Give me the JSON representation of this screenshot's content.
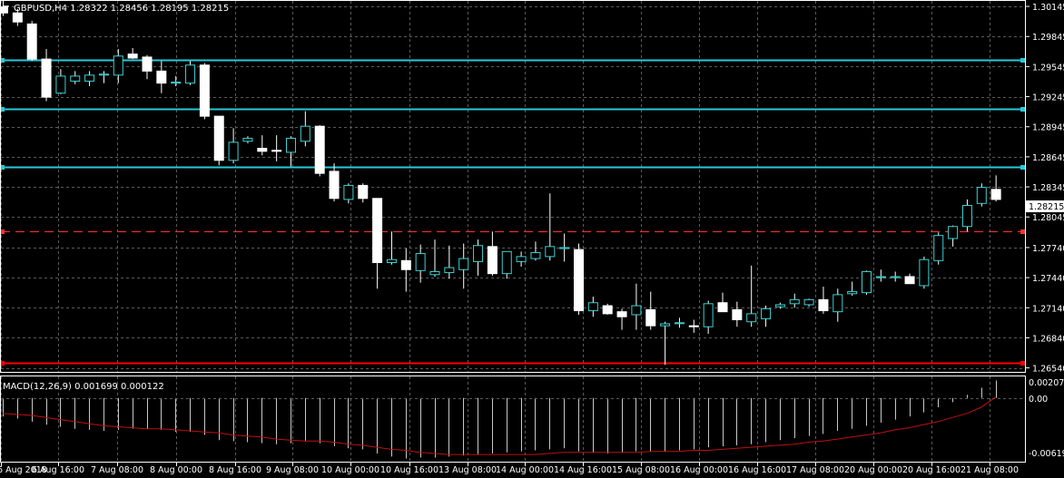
{
  "header": {
    "collapse_glyph": "▼",
    "symbol_line": "GBPUSD,H4  1.28322 1.28456 1.28195 1.28215"
  },
  "price_axis": {
    "ticks": [
      "1.30145",
      "1.29845",
      "1.29545",
      "1.29245",
      "1.28945",
      "1.28645",
      "1.28345",
      "1.28045",
      "1.27740",
      "1.27440",
      "1.27140",
      "1.26840",
      "1.26540"
    ],
    "current_price": "1.28215"
  },
  "macd": {
    "label": "MACD(12,26,9) 0.001699 0.000122",
    "ticks": [
      "0.002074",
      "0.00",
      "-0.006191"
    ]
  },
  "time_axis": {
    "labels": [
      "6 Aug 2018",
      "6 Aug 16:00",
      "7 Aug 08:00",
      "8 Aug 00:00",
      "8 Aug 16:00",
      "9 Aug 08:00",
      "10 Aug 00:00",
      "10 Aug 16:00",
      "13 Aug 08:00",
      "14 Aug 00:00",
      "14 Aug 16:00",
      "15 Aug 08:00",
      "16 Aug 00:00",
      "16 Aug 16:00",
      "17 Aug 08:00",
      "20 Aug 00:00",
      "20 Aug 16:00",
      "21 Aug 08:00"
    ]
  },
  "colors": {
    "background": "#000000",
    "grid": "#5a5a5a",
    "bull_candle": "#000000",
    "bear_candle": "#ffffff",
    "wick": "#ffffff",
    "bull_outline": "#3ad1d1",
    "level_line": "#28c8d8",
    "support_line": "#ff0000",
    "dashed_line": "#ff3030",
    "signal_line": "#c01010",
    "histogram": "#c8c8c8"
  },
  "chart_data": {
    "type": "candlestick",
    "symbol": "GBPUSD",
    "timeframe": "H4",
    "ylim": [
      1.265,
      1.302
    ],
    "candles": [
      {
        "o": 1.3014,
        "h": 1.302,
        "l": 1.3005,
        "c": 1.3008
      },
      {
        "o": 1.3008,
        "h": 1.3012,
        "l": 1.2995,
        "c": 1.2999
      },
      {
        "o": 1.2997,
        "h": 1.3,
        "l": 1.296,
        "c": 1.2962
      },
      {
        "o": 1.2962,
        "h": 1.2972,
        "l": 1.292,
        "c": 1.2924
      },
      {
        "o": 1.2928,
        "h": 1.2952,
        "l": 1.2927,
        "c": 1.2945
      },
      {
        "o": 1.294,
        "h": 1.295,
        "l": 1.2937,
        "c": 1.2945
      },
      {
        "o": 1.294,
        "h": 1.295,
        "l": 1.2935,
        "c": 1.2946
      },
      {
        "o": 1.2946,
        "h": 1.295,
        "l": 1.2938,
        "c": 1.2947
      },
      {
        "o": 1.2946,
        "h": 1.2972,
        "l": 1.2938,
        "c": 1.2965
      },
      {
        "o": 1.2967,
        "h": 1.2973,
        "l": 1.2962,
        "c": 1.2963
      },
      {
        "o": 1.2964,
        "h": 1.2966,
        "l": 1.2942,
        "c": 1.295
      },
      {
        "o": 1.295,
        "h": 1.296,
        "l": 1.2928,
        "c": 1.2938
      },
      {
        "o": 1.2938,
        "h": 1.2945,
        "l": 1.2935,
        "c": 1.2939
      },
      {
        "o": 1.2938,
        "h": 1.296,
        "l": 1.2936,
        "c": 1.2956
      },
      {
        "o": 1.2956,
        "h": 1.2958,
        "l": 1.2902,
        "c": 1.2905
      },
      {
        "o": 1.2905,
        "h": 1.2905,
        "l": 1.2856,
        "c": 1.2861
      },
      {
        "o": 1.2861,
        "h": 1.2893,
        "l": 1.2858,
        "c": 1.2879
      },
      {
        "o": 1.288,
        "h": 1.2885,
        "l": 1.2878,
        "c": 1.2883
      },
      {
        "o": 1.2873,
        "h": 1.2886,
        "l": 1.2866,
        "c": 1.287
      },
      {
        "o": 1.2871,
        "h": 1.2886,
        "l": 1.286,
        "c": 1.287
      },
      {
        "o": 1.2869,
        "h": 1.2885,
        "l": 1.2855,
        "c": 1.2883
      },
      {
        "o": 1.288,
        "h": 1.291,
        "l": 1.2875,
        "c": 1.2895
      },
      {
        "o": 1.2895,
        "h": 1.2896,
        "l": 1.2845,
        "c": 1.2848
      },
      {
        "o": 1.285,
        "h": 1.2858,
        "l": 1.282,
        "c": 1.2823
      },
      {
        "o": 1.2822,
        "h": 1.2838,
        "l": 1.2818,
        "c": 1.2836
      },
      {
        "o": 1.2836,
        "h": 1.2838,
        "l": 1.2819,
        "c": 1.2823
      },
      {
        "o": 1.2823,
        "h": 1.2823,
        "l": 1.2733,
        "c": 1.2759
      },
      {
        "o": 1.2759,
        "h": 1.279,
        "l": 1.2757,
        "c": 1.2762
      },
      {
        "o": 1.2761,
        "h": 1.2773,
        "l": 1.273,
        "c": 1.2752
      },
      {
        "o": 1.2751,
        "h": 1.2777,
        "l": 1.2739,
        "c": 1.2768
      },
      {
        "o": 1.2747,
        "h": 1.2782,
        "l": 1.2745,
        "c": 1.275
      },
      {
        "o": 1.2749,
        "h": 1.2776,
        "l": 1.2743,
        "c": 1.2754
      },
      {
        "o": 1.2752,
        "h": 1.2778,
        "l": 1.2733,
        "c": 1.2763
      },
      {
        "o": 1.276,
        "h": 1.2782,
        "l": 1.2746,
        "c": 1.2776
      },
      {
        "o": 1.2775,
        "h": 1.279,
        "l": 1.2746,
        "c": 1.2748
      },
      {
        "o": 1.2748,
        "h": 1.2767,
        "l": 1.2743,
        "c": 1.277
      },
      {
        "o": 1.276,
        "h": 1.277,
        "l": 1.2755,
        "c": 1.2765
      },
      {
        "o": 1.2763,
        "h": 1.278,
        "l": 1.2761,
        "c": 1.2769
      },
      {
        "o": 1.2765,
        "h": 1.2828,
        "l": 1.2761,
        "c": 1.2775
      },
      {
        "o": 1.2773,
        "h": 1.2788,
        "l": 1.276,
        "c": 1.2774
      },
      {
        "o": 1.2772,
        "h": 1.2778,
        "l": 1.2707,
        "c": 1.2711
      },
      {
        "o": 1.2711,
        "h": 1.2725,
        "l": 1.2705,
        "c": 1.2719
      },
      {
        "o": 1.2716,
        "h": 1.2718,
        "l": 1.2707,
        "c": 1.2708
      },
      {
        "o": 1.271,
        "h": 1.2713,
        "l": 1.2692,
        "c": 1.2705
      },
      {
        "o": 1.2707,
        "h": 1.2738,
        "l": 1.2692,
        "c": 1.2716
      },
      {
        "o": 1.2712,
        "h": 1.273,
        "l": 1.2692,
        "c": 1.2696
      },
      {
        "o": 1.2696,
        "h": 1.27,
        "l": 1.2657,
        "c": 1.2698
      },
      {
        "o": 1.2699,
        "h": 1.2704,
        "l": 1.2694,
        "c": 1.2699
      },
      {
        "o": 1.2696,
        "h": 1.2702,
        "l": 1.2689,
        "c": 1.2695
      },
      {
        "o": 1.2695,
        "h": 1.2721,
        "l": 1.2688,
        "c": 1.2718
      },
      {
        "o": 1.2719,
        "h": 1.2729,
        "l": 1.271,
        "c": 1.271
      },
      {
        "o": 1.2712,
        "h": 1.272,
        "l": 1.2695,
        "c": 1.2702
      },
      {
        "o": 1.27,
        "h": 1.2756,
        "l": 1.2695,
        "c": 1.2708
      },
      {
        "o": 1.2703,
        "h": 1.2716,
        "l": 1.2695,
        "c": 1.2713
      },
      {
        "o": 1.2715,
        "h": 1.2719,
        "l": 1.2713,
        "c": 1.2717
      },
      {
        "o": 1.2718,
        "h": 1.2728,
        "l": 1.2714,
        "c": 1.2722
      },
      {
        "o": 1.2717,
        "h": 1.2723,
        "l": 1.2715,
        "c": 1.2722
      },
      {
        "o": 1.2722,
        "h": 1.2735,
        "l": 1.2708,
        "c": 1.2711
      },
      {
        "o": 1.271,
        "h": 1.2733,
        "l": 1.27,
        "c": 1.2727
      },
      {
        "o": 1.2728,
        "h": 1.274,
        "l": 1.2726,
        "c": 1.273
      },
      {
        "o": 1.2729,
        "h": 1.2751,
        "l": 1.2727,
        "c": 1.275
      },
      {
        "o": 1.2744,
        "h": 1.2752,
        "l": 1.274,
        "c": 1.2745
      },
      {
        "o": 1.2744,
        "h": 1.275,
        "l": 1.274,
        "c": 1.2745
      },
      {
        "o": 1.2745,
        "h": 1.2748,
        "l": 1.2738,
        "c": 1.2738
      },
      {
        "o": 1.2736,
        "h": 1.2765,
        "l": 1.2733,
        "c": 1.2762
      },
      {
        "o": 1.2761,
        "h": 1.2789,
        "l": 1.2757,
        "c": 1.2786
      },
      {
        "o": 1.2783,
        "h": 1.2796,
        "l": 1.2775,
        "c": 1.2795
      },
      {
        "o": 1.2795,
        "h": 1.2822,
        "l": 1.279,
        "c": 1.2816
      },
      {
        "o": 1.2818,
        "h": 1.2838,
        "l": 1.2815,
        "c": 1.2834
      },
      {
        "o": 1.2832,
        "h": 1.2846,
        "l": 1.282,
        "c": 1.2822
      }
    ],
    "horizontal_levels": [
      {
        "price": 1.2961,
        "style": "solid",
        "color": "#28c8d8"
      },
      {
        "price": 1.2912,
        "style": "solid",
        "color": "#28c8d8"
      },
      {
        "price": 1.2854,
        "style": "solid",
        "color": "#28c8d8"
      },
      {
        "price": 1.279,
        "style": "dashed",
        "color": "#ff3030"
      },
      {
        "price": 1.2659,
        "style": "solid",
        "color": "#ff0000"
      }
    ],
    "macd": {
      "params": "12,26,9",
      "ylim": [
        -0.0062,
        0.0021
      ],
      "histogram": [
        -0.0018,
        -0.002,
        -0.0023,
        -0.0026,
        -0.0028,
        -0.003,
        -0.0031,
        -0.0032,
        -0.0031,
        -0.003,
        -0.003,
        -0.0031,
        -0.0033,
        -0.0033,
        -0.0036,
        -0.0041,
        -0.0042,
        -0.0043,
        -0.0044,
        -0.0045,
        -0.0044,
        -0.0042,
        -0.0044,
        -0.0047,
        -0.0049,
        -0.005,
        -0.0054,
        -0.0057,
        -0.0059,
        -0.0058,
        -0.0058,
        -0.0057,
        -0.0056,
        -0.0055,
        -0.0054,
        -0.0053,
        -0.0052,
        -0.0051,
        -0.005,
        -0.0049,
        -0.0052,
        -0.0053,
        -0.0054,
        -0.0053,
        -0.0052,
        -0.0052,
        -0.0052,
        -0.0051,
        -0.005,
        -0.0048,
        -0.0047,
        -0.0046,
        -0.0045,
        -0.0043,
        -0.0041,
        -0.0039,
        -0.0037,
        -0.0035,
        -0.0032,
        -0.003,
        -0.0027,
        -0.0024,
        -0.0021,
        -0.0018,
        -0.0014,
        -0.0009,
        -0.0004,
        0.0003,
        0.001,
        0.0017
      ],
      "signal": [
        -0.0015,
        -0.0016,
        -0.0017,
        -0.0019,
        -0.0021,
        -0.0023,
        -0.0025,
        -0.0027,
        -0.0028,
        -0.0029,
        -0.003,
        -0.003,
        -0.0031,
        -0.0032,
        -0.0033,
        -0.0034,
        -0.0036,
        -0.0037,
        -0.0038,
        -0.004,
        -0.0041,
        -0.0042,
        -0.0042,
        -0.0043,
        -0.0045,
        -0.0046,
        -0.0048,
        -0.005,
        -0.0051,
        -0.0053,
        -0.0054,
        -0.0055,
        -0.0055,
        -0.0055,
        -0.0055,
        -0.0055,
        -0.0055,
        -0.0055,
        -0.0054,
        -0.0053,
        -0.0053,
        -0.0053,
        -0.0053,
        -0.0053,
        -0.0053,
        -0.0052,
        -0.0052,
        -0.0052,
        -0.0051,
        -0.0051,
        -0.005,
        -0.0049,
        -0.0048,
        -0.0047,
        -0.0046,
        -0.0045,
        -0.0043,
        -0.0042,
        -0.004,
        -0.0038,
        -0.0036,
        -0.0034,
        -0.0031,
        -0.0029,
        -0.0026,
        -0.0023,
        -0.0019,
        -0.0015,
        -0.0009,
        0.0001
      ]
    }
  }
}
